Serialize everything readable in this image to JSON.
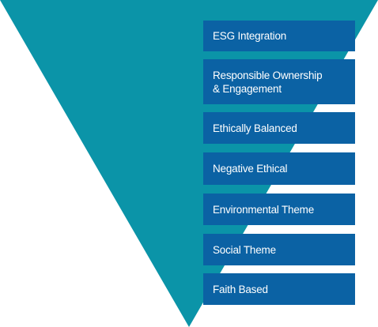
{
  "funnel": {
    "color": "#0b94a8",
    "box_color": "#0b62a4",
    "items": [
      {
        "label": "ESG Integration"
      },
      {
        "label": "Responsible Ownership\n& Engagement"
      },
      {
        "label": "Ethically Balanced"
      },
      {
        "label": "Negative Ethical"
      },
      {
        "label": "Environmental Theme"
      },
      {
        "label": "Social Theme"
      },
      {
        "label": "Faith Based"
      }
    ]
  }
}
